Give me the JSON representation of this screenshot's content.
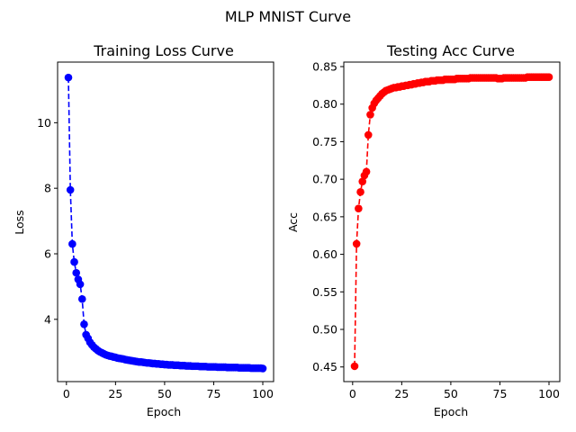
{
  "figure": {
    "suptitle": "MLP MNIST Curve"
  },
  "chart_data": [
    {
      "type": "line",
      "title": "Training Loss Curve",
      "xlabel": "Epoch",
      "ylabel": "Loss",
      "xlim": [
        -4.5,
        105.5
      ],
      "ylim": [
        2.1,
        11.85
      ],
      "xticks": [
        0,
        25,
        50,
        75,
        100
      ],
      "yticks": [
        4,
        6,
        8,
        10
      ],
      "grid": false,
      "series": [
        {
          "color": "#0000ff",
          "linestyle": "dashed",
          "marker": "circle",
          "x": [
            1,
            2,
            3,
            4,
            5,
            6,
            7,
            8,
            9,
            10,
            11,
            12,
            13,
            14,
            15,
            16,
            17,
            18,
            19,
            20,
            21,
            22,
            23,
            24,
            25,
            26,
            27,
            28,
            29,
            30,
            31,
            32,
            33,
            34,
            35,
            36,
            37,
            38,
            39,
            40,
            41,
            42,
            43,
            44,
            45,
            46,
            47,
            48,
            49,
            50,
            51,
            52,
            53,
            54,
            55,
            56,
            57,
            58,
            59,
            60,
            61,
            62,
            63,
            64,
            65,
            66,
            67,
            68,
            69,
            70,
            71,
            72,
            73,
            74,
            75,
            76,
            77,
            78,
            79,
            80,
            81,
            82,
            83,
            84,
            85,
            86,
            87,
            88,
            89,
            90,
            91,
            92,
            93,
            94,
            95,
            96,
            97,
            98,
            99,
            100
          ],
          "y": [
            11.38,
            7.95,
            6.3,
            5.75,
            5.42,
            5.22,
            5.07,
            4.62,
            3.85,
            3.53,
            3.42,
            3.3,
            3.22,
            3.15,
            3.1,
            3.05,
            3.01,
            2.98,
            2.95,
            2.92,
            2.9,
            2.88,
            2.87,
            2.85,
            2.84,
            2.82,
            2.81,
            2.8,
            2.79,
            2.77,
            2.76,
            2.75,
            2.74,
            2.73,
            2.72,
            2.71,
            2.7,
            2.7,
            2.69,
            2.68,
            2.67,
            2.67,
            2.66,
            2.65,
            2.65,
            2.64,
            2.64,
            2.63,
            2.63,
            2.62,
            2.62,
            2.61,
            2.61,
            2.61,
            2.6,
            2.6,
            2.6,
            2.59,
            2.59,
            2.59,
            2.58,
            2.58,
            2.58,
            2.57,
            2.57,
            2.57,
            2.57,
            2.56,
            2.56,
            2.56,
            2.56,
            2.55,
            2.55,
            2.55,
            2.55,
            2.55,
            2.54,
            2.54,
            2.54,
            2.54,
            2.54,
            2.53,
            2.53,
            2.53,
            2.53,
            2.53,
            2.53,
            2.52,
            2.52,
            2.52,
            2.52,
            2.52,
            2.52,
            2.51,
            2.51,
            2.51,
            2.51,
            2.51,
            2.51,
            2.5
          ]
        }
      ]
    },
    {
      "type": "line",
      "title": "Testing Acc Curve",
      "xlabel": "Epoch",
      "ylabel": "Acc",
      "xlim": [
        -4.5,
        105.5
      ],
      "ylim": [
        0.4305,
        0.856
      ],
      "xticks": [
        0,
        25,
        50,
        75,
        100
      ],
      "yticks": [
        0.45,
        0.5,
        0.55,
        0.6,
        0.65,
        0.7,
        0.75,
        0.8,
        0.85
      ],
      "grid": false,
      "series": [
        {
          "color": "#ff0000",
          "linestyle": "dashed",
          "marker": "circle",
          "x": [
            1,
            2,
            3,
            4,
            5,
            6,
            7,
            8,
            9,
            10,
            11,
            12,
            13,
            14,
            15,
            16,
            17,
            18,
            19,
            20,
            21,
            22,
            23,
            24,
            25,
            26,
            27,
            28,
            29,
            30,
            31,
            32,
            33,
            34,
            35,
            36,
            37,
            38,
            39,
            40,
            41,
            42,
            43,
            44,
            45,
            46,
            47,
            48,
            49,
            50,
            51,
            52,
            53,
            54,
            55,
            56,
            57,
            58,
            59,
            60,
            61,
            62,
            63,
            64,
            65,
            66,
            67,
            68,
            69,
            70,
            71,
            72,
            73,
            74,
            75,
            76,
            77,
            78,
            79,
            80,
            81,
            82,
            83,
            84,
            85,
            86,
            87,
            88,
            89,
            90,
            91,
            92,
            93,
            94,
            95,
            96,
            97,
            98,
            99,
            100
          ],
          "y": [
            0.451,
            0.614,
            0.661,
            0.683,
            0.697,
            0.705,
            0.71,
            0.759,
            0.786,
            0.795,
            0.801,
            0.805,
            0.808,
            0.811,
            0.814,
            0.816,
            0.818,
            0.819,
            0.82,
            0.821,
            0.822,
            0.822,
            0.823,
            0.823,
            0.824,
            0.824,
            0.825,
            0.825,
            0.826,
            0.826,
            0.827,
            0.827,
            0.828,
            0.828,
            0.829,
            0.829,
            0.83,
            0.83,
            0.83,
            0.831,
            0.831,
            0.831,
            0.832,
            0.832,
            0.832,
            0.832,
            0.833,
            0.833,
            0.833,
            0.833,
            0.833,
            0.833,
            0.834,
            0.834,
            0.834,
            0.834,
            0.834,
            0.834,
            0.834,
            0.835,
            0.835,
            0.835,
            0.835,
            0.835,
            0.835,
            0.835,
            0.835,
            0.835,
            0.835,
            0.835,
            0.835,
            0.835,
            0.835,
            0.834,
            0.834,
            0.834,
            0.835,
            0.835,
            0.835,
            0.835,
            0.835,
            0.835,
            0.835,
            0.835,
            0.835,
            0.835,
            0.835,
            0.835,
            0.836,
            0.836,
            0.836,
            0.836,
            0.836,
            0.836,
            0.836,
            0.836,
            0.836,
            0.836,
            0.836,
            0.836
          ]
        }
      ]
    }
  ]
}
